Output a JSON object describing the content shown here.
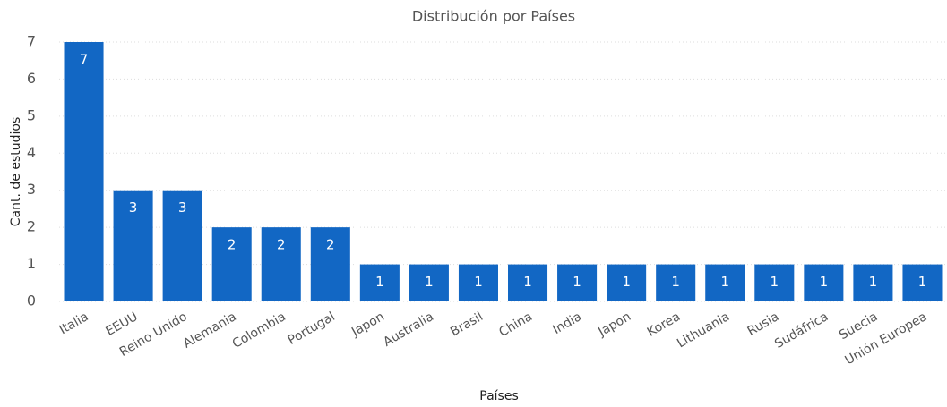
{
  "chart_data": {
    "type": "bar",
    "title": "Distribución por Países",
    "x_label": "Países",
    "y_label": "Cant. de estudios",
    "categories": [
      "Italia",
      "EEUU",
      "Reino Unido",
      "Alemania",
      "Colombia",
      "Portugal",
      "Japon",
      "Australia",
      "Brasil",
      "China",
      "India",
      "Japon",
      "Korea",
      "Lithuania",
      "Rusia",
      "Sudáfrica",
      "Suecia",
      "Unión Europea"
    ],
    "values": [
      7,
      3,
      3,
      2,
      2,
      2,
      1,
      1,
      1,
      1,
      1,
      1,
      1,
      1,
      1,
      1,
      1,
      1
    ],
    "color": "#1267c4",
    "ylim": [
      0,
      7
    ],
    "yticks": [
      0,
      1,
      2,
      3,
      4,
      5,
      6,
      7
    ],
    "grid": true,
    "data_labels": true
  }
}
